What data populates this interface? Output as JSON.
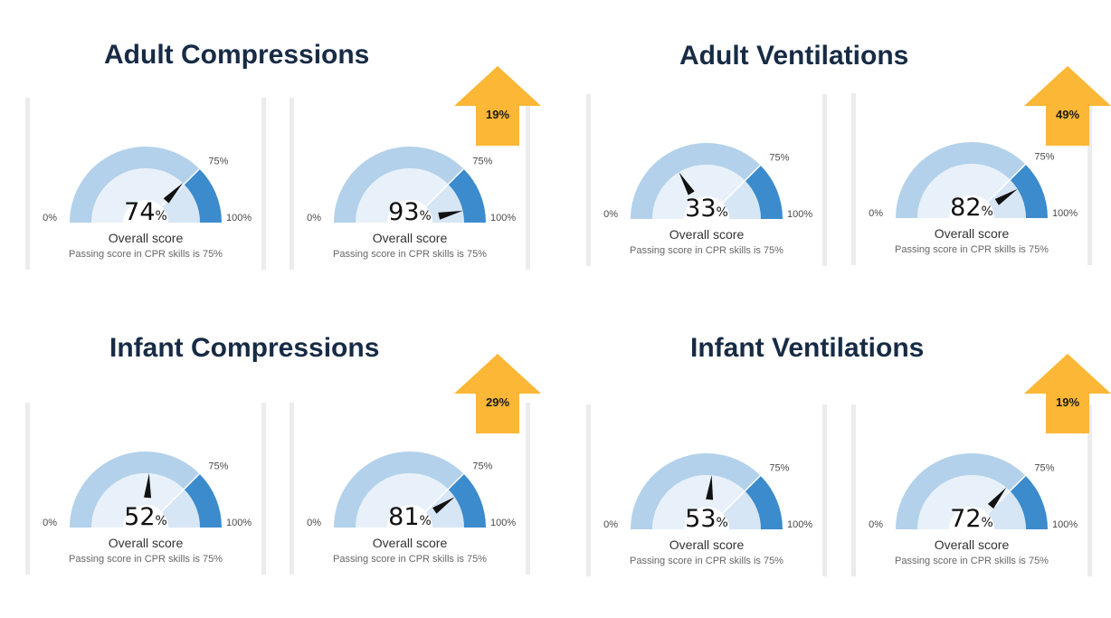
{
  "sections": [
    {
      "title": "Adult Compressions",
      "before": {
        "score": 74,
        "overall_label": "Overall score",
        "passing_label": "Passing score in CPR skills is 75%",
        "min_label": "0%",
        "max_label": "100%",
        "threshold_label": "75%"
      },
      "after": {
        "score": 93,
        "overall_label": "Overall score",
        "passing_label": "Passing score in CPR skills is 75%",
        "min_label": "0%",
        "max_label": "100%",
        "threshold_label": "75%"
      },
      "improvement": "19%"
    },
    {
      "title": "Adult Ventilations",
      "before": {
        "score": 33,
        "overall_label": "Overall score",
        "passing_label": "Passing score in CPR skills is 75%",
        "min_label": "0%",
        "max_label": "100%",
        "threshold_label": "75%"
      },
      "after": {
        "score": 82,
        "overall_label": "Overall score",
        "passing_label": "Passing score in CPR skills is 75%",
        "min_label": "0%",
        "max_label": "100%",
        "threshold_label": "75%"
      },
      "improvement": "49%"
    },
    {
      "title": "Infant Compressions",
      "before": {
        "score": 52,
        "overall_label": "Overall score",
        "passing_label": "Passing score in CPR skills is 75%",
        "min_label": "0%",
        "max_label": "100%",
        "threshold_label": "75%"
      },
      "after": {
        "score": 81,
        "overall_label": "Overall score",
        "passing_label": "Passing score in CPR skills is 75%",
        "min_label": "0%",
        "max_label": "100%",
        "threshold_label": "75%"
      },
      "improvement": "29%"
    },
    {
      "title": "Infant Ventilations",
      "before": {
        "score": 53,
        "overall_label": "Overall score",
        "passing_label": "Passing score in CPR skills is 75%",
        "min_label": "0%",
        "max_label": "100%",
        "threshold_label": "75%"
      },
      "after": {
        "score": 72,
        "overall_label": "Overall score",
        "passing_label": "Passing score in CPR skills is 75%",
        "min_label": "0%",
        "max_label": "100%",
        "threshold_label": "75%"
      },
      "improvement": "19%"
    }
  ],
  "colors": {
    "title": "#172b45",
    "gauge_track": "#b3d1ea",
    "gauge_pass_zone": "#3b8bcd",
    "gauge_inner": "#e8f1fa",
    "gauge_inner_pass": "#d7e6f4",
    "needle": "#111111",
    "arrow": "#fbb735",
    "card_border": "#ececec"
  },
  "passing_threshold": 75
}
